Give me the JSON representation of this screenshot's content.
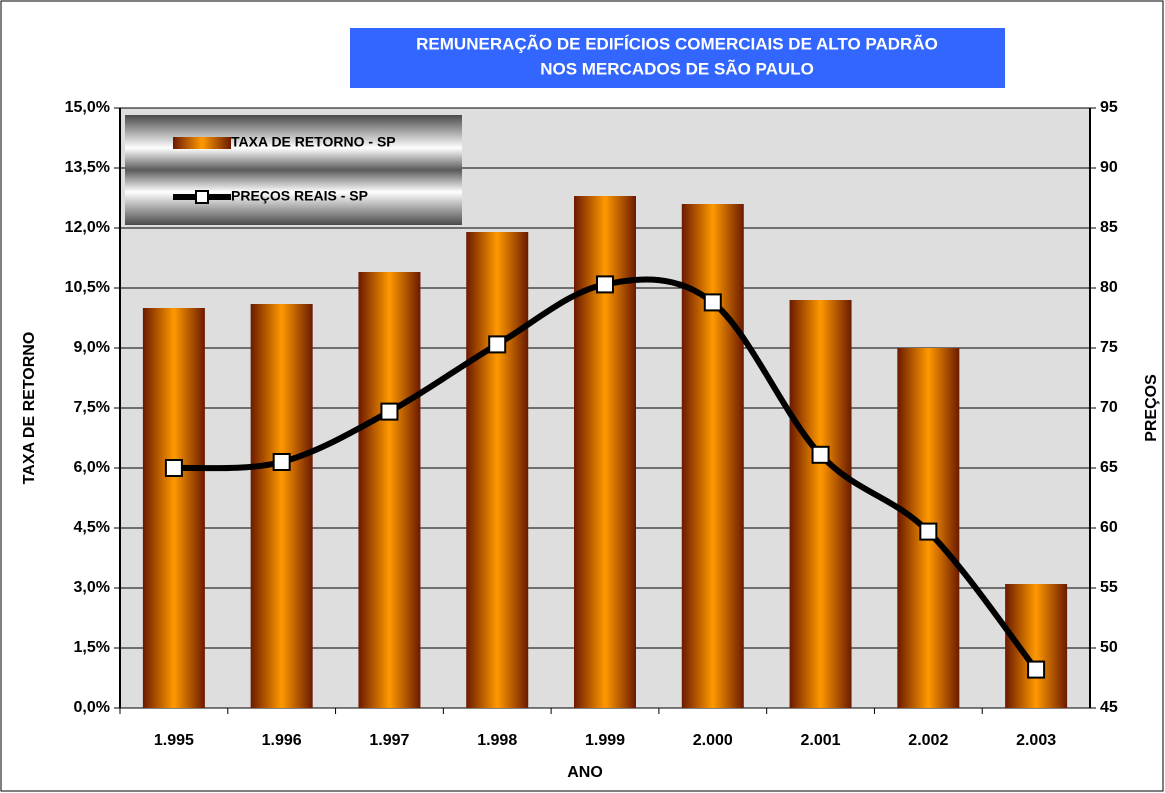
{
  "chart_data": {
    "type": "bar",
    "title": "REMUNERAÇÃO DE EDIFÍCIOS COMERCIAIS DE ALTO PADRÃO",
    "subtitle": "NOS MERCADOS DE SÃO PAULO",
    "x_label": "ANO",
    "y_label": "TAXA DE RETORNO",
    "y2_label": "PREÇOS",
    "categories": [
      "1.995",
      "1.996",
      "1.997",
      "1.998",
      "1.999",
      "2.000",
      "2.001",
      "2.002",
      "2.003"
    ],
    "series": [
      {
        "name": "TAXA DE RETORNO - SP",
        "type": "bar",
        "axis": "y",
        "color": "#ff9900",
        "values": [
          10.0,
          10.1,
          10.9,
          11.9,
          12.8,
          12.6,
          10.2,
          9.0,
          3.1
        ]
      },
      {
        "name": "PREÇOS REAIS - SP",
        "type": "line",
        "axis": "y2",
        "color": "#000000",
        "values": [
          65.0,
          65.5,
          69.7,
          75.3,
          80.3,
          78.8,
          66.1,
          59.7,
          48.2
        ]
      }
    ],
    "ylim": [
      0,
      15
    ],
    "yticks": [
      {
        "value": 0,
        "label": "0,0%"
      },
      {
        "value": 1.5,
        "label": "1,5%"
      },
      {
        "value": 3,
        "label": "3,0%"
      },
      {
        "value": 4.5,
        "label": "4,5%"
      },
      {
        "value": 6,
        "label": "6,0%"
      },
      {
        "value": 7.5,
        "label": "7,5%"
      },
      {
        "value": 9,
        "label": "9,0%"
      },
      {
        "value": 10.5,
        "label": "10,5%"
      },
      {
        "value": 12,
        "label": "12,0%"
      },
      {
        "value": 13.5,
        "label": "13,5%"
      },
      {
        "value": 15,
        "label": "15,0%"
      }
    ],
    "y2lim": [
      45,
      95
    ],
    "y2ticks": [
      45,
      50,
      55,
      60,
      65,
      70,
      75,
      80,
      85,
      90,
      95
    ],
    "grid": true,
    "legend": "top-left"
  }
}
